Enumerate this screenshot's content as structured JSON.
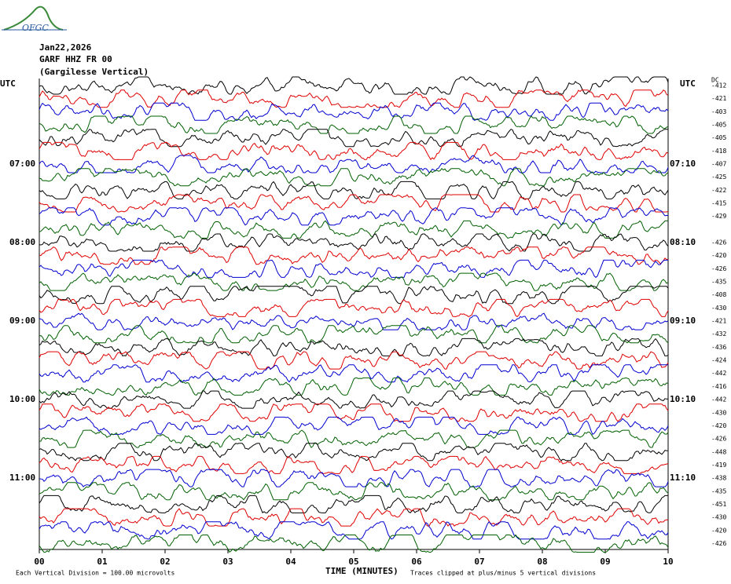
{
  "logo": "OFGC",
  "chart_data": {
    "type": "helicorder",
    "date": "Jan22,2026",
    "station": "GARF HHZ FR 00",
    "location": "(Gargilesse Vertical)",
    "left_label": "UTC",
    "right_label": "UTC",
    "offset_header": "DC",
    "left_times": [
      "07:00",
      "08:00",
      "09:00",
      "10:00",
      "11:00"
    ],
    "right_times": [
      "07:10",
      "08:10",
      "09:10",
      "10:10",
      "11:10"
    ],
    "rows_per_hour": 6,
    "first_hour_row": 6,
    "colors": [
      "#000000",
      "#e00000",
      "#0000d0",
      "#006000"
    ],
    "offsets": [
      "-412",
      "-421",
      "-403",
      "-405",
      "-405",
      "-418",
      "-407",
      "-425",
      "-422",
      "-415",
      "-429",
      null,
      "-426",
      "-420",
      "-426",
      "-435",
      "-408",
      "-430",
      "-421",
      "-432",
      "-436",
      "-424",
      "-442",
      "-416",
      "-442",
      "-430",
      "-420",
      "-426",
      "-448",
      "-419",
      "-438",
      "-435",
      "-451",
      "-430",
      "-420",
      "-426"
    ],
    "xlabel": "TIME (MINUTES)",
    "xlim": [
      0,
      10
    ],
    "xticks": [
      {
        "value": 0,
        "label": "00"
      },
      {
        "value": 1,
        "label": "01"
      },
      {
        "value": 2,
        "label": "02"
      },
      {
        "value": 3,
        "label": "03"
      },
      {
        "value": 4,
        "label": "04"
      },
      {
        "value": 5,
        "label": "05"
      },
      {
        "value": 6,
        "label": "06"
      },
      {
        "value": 7,
        "label": "07"
      },
      {
        "value": 8,
        "label": "08"
      },
      {
        "value": 9,
        "label": "09"
      },
      {
        "value": 10,
        "label": "10"
      }
    ],
    "scale_note": "Each Vertical Division =  100.00 microvolts",
    "clip_note": "Traces clipped at plus/minus 5 vertical divisions"
  }
}
